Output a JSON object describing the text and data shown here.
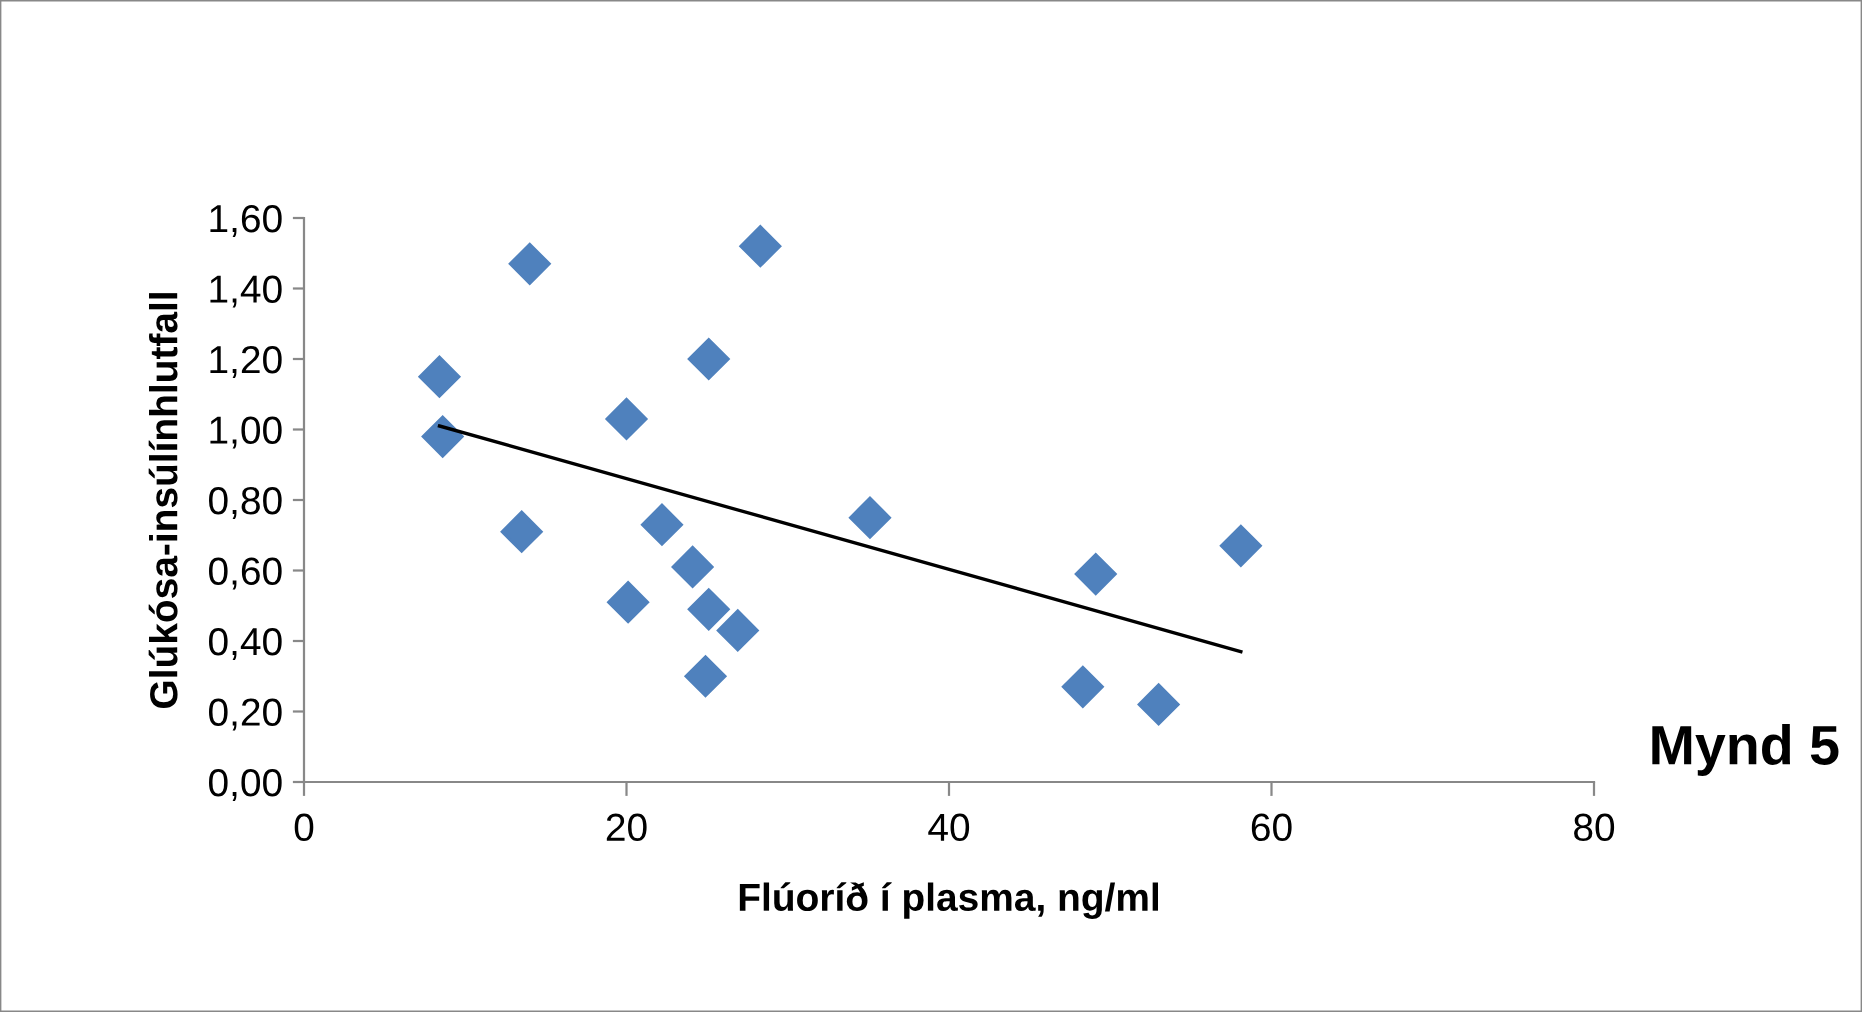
{
  "chart_data": {
    "type": "scatter",
    "xlabel": "Flúoríð í plasma, ng/ml",
    "ylabel": "Glúkósa-insúlínhlutfall",
    "annotations": [
      "Mynd 5"
    ],
    "xlim": [
      0,
      80
    ],
    "xticks": [
      0,
      20,
      40,
      60,
      80
    ],
    "ylim": [
      0,
      1.6
    ],
    "yticks": [
      {
        "value": 0,
        "label": "0,00"
      },
      {
        "value": 0.2,
        "label": "0,20"
      },
      {
        "value": 0.4,
        "label": "0,40"
      },
      {
        "value": 0.6,
        "label": "0,60"
      },
      {
        "value": 0.8,
        "label": "0,80"
      },
      {
        "value": 1.0,
        "label": "1,00"
      },
      {
        "value": 1.2,
        "label": "1,20"
      },
      {
        "value": 1.4,
        "label": "1,40"
      },
      {
        "value": 1.6,
        "label": "1,60"
      }
    ],
    "grid": false,
    "legend": false,
    "series": [
      {
        "type": "scatter",
        "marker": "diamond",
        "color": "#4f81bd",
        "x": [
          8.4,
          8.6,
          14.0,
          13.5,
          20.0,
          20.1,
          22.2,
          24.1,
          25.1,
          25.1,
          24.9,
          26.9,
          28.3,
          35.1,
          49.1,
          48.3,
          53.0,
          58.1
        ],
        "values": [
          1.15,
          0.98,
          1.47,
          0.71,
          1.03,
          0.51,
          0.73,
          0.61,
          1.2,
          0.49,
          0.3,
          0.43,
          1.52,
          0.75,
          0.59,
          0.27,
          0.22,
          0.67
        ]
      },
      {
        "type": "line",
        "marker": "none",
        "color": "#000000",
        "x": [
          8.4,
          58.1
        ],
        "values": [
          1.01,
          0.37
        ]
      }
    ]
  }
}
